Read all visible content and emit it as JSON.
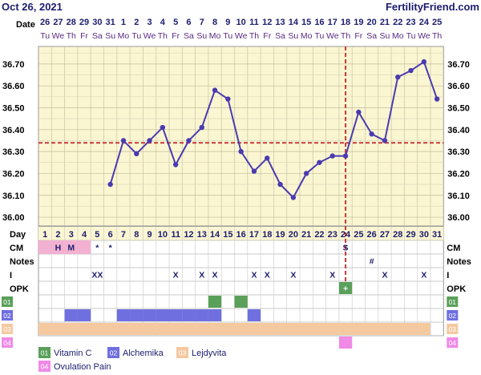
{
  "header": {
    "date": "Oct 26, 2021",
    "site": "FertilityFriend.com"
  },
  "chart_data": {
    "type": "line",
    "row_labels": {
      "date": "Date",
      "day": "Day",
      "cm": "CM",
      "notes": "Notes",
      "intercourse": "I",
      "opk": "OPK"
    },
    "dates": [
      "26",
      "27",
      "28",
      "29",
      "30",
      "31",
      "1",
      "2",
      "3",
      "4",
      "5",
      "6",
      "7",
      "8",
      "9",
      "10",
      "11",
      "12",
      "13",
      "14",
      "15",
      "16",
      "17",
      "18",
      "19",
      "20",
      "21",
      "22",
      "23",
      "24",
      "25"
    ],
    "weekdays": [
      "Tu",
      "We",
      "Th",
      "Fr",
      "Sa",
      "Su",
      "Mo",
      "Tu",
      "We",
      "Th",
      "Fr",
      "Sa",
      "Su",
      "Mo",
      "Tu",
      "We",
      "Th",
      "Fr",
      "Sa",
      "Su",
      "Mo",
      "Tu",
      "We",
      "Th",
      "Fr",
      "Sa",
      "Su",
      "Mo",
      "Tu",
      "We",
      "Th"
    ],
    "days": [
      1,
      2,
      3,
      4,
      5,
      6,
      7,
      8,
      9,
      10,
      11,
      12,
      13,
      14,
      15,
      16,
      17,
      18,
      19,
      20,
      21,
      22,
      23,
      24,
      25,
      26,
      27,
      28,
      29,
      30,
      31
    ],
    "y_ticks": [
      "36.00",
      "36.10",
      "36.20",
      "36.30",
      "36.40",
      "36.50",
      "36.60",
      "36.70"
    ],
    "ylim": [
      35.96,
      36.78
    ],
    "temperatures": [
      null,
      null,
      null,
      null,
      null,
      36.15,
      36.35,
      36.29,
      36.35,
      36.41,
      36.24,
      36.35,
      36.41,
      36.58,
      36.54,
      36.3,
      36.21,
      36.27,
      36.15,
      36.09,
      36.2,
      36.25,
      36.28,
      36.28,
      36.48,
      36.38,
      36.35,
      36.64,
      36.67,
      36.71,
      36.54
    ],
    "coverline": 36.34,
    "ovulation_day": 24,
    "cm": [
      "",
      "H",
      "M",
      "",
      "*",
      "*",
      "",
      "",
      "",
      "",
      "",
      "",
      "",
      "",
      "",
      "",
      "",
      "",
      "",
      "",
      "",
      "",
      "",
      "S",
      "",
      "",
      "",
      "",
      "",
      "",
      ""
    ],
    "cm_colors": {
      "H": "#f2b1d1",
      "M": "#f2b1d1"
    },
    "cm_highlight_days": [
      1,
      2,
      3,
      4
    ],
    "notes": [
      "",
      "",
      "",
      "",
      "",
      "",
      "",
      "",
      "",
      "",
      "",
      "",
      "",
      "",
      "",
      "",
      "",
      "",
      "",
      "",
      "",
      "",
      "",
      "",
      "",
      "#",
      "",
      "",
      "",
      "",
      ""
    ],
    "intercourse": [
      "",
      "",
      "",
      "",
      "XX",
      "",
      "",
      "",
      "",
      "",
      "X",
      "",
      "X",
      "X",
      "",
      "",
      "X",
      "X",
      "",
      "X",
      "",
      "",
      "X",
      "",
      "",
      "",
      "X",
      "",
      "",
      "X",
      ""
    ],
    "opk": [
      "",
      "",
      "",
      "",
      "",
      "",
      "",
      "",
      "",
      "",
      "",
      "",
      "",
      "",
      "",
      "",
      "",
      "",
      "",
      "",
      "",
      "",
      "",
      "+",
      "",
      "",
      "",
      "",
      "",
      "",
      ""
    ],
    "meds": [
      {
        "code": "01",
        "name": "Vitamin C",
        "color": "#5aa05a",
        "days": [
          14,
          16
        ]
      },
      {
        "code": "02",
        "name": "Alchemika",
        "color": "#6f6fe0",
        "days": [
          3,
          4,
          7,
          8,
          9,
          10,
          11,
          12,
          13,
          14,
          17
        ]
      },
      {
        "code": "03",
        "name": "Lejdyvita",
        "color": "#f5c9a0",
        "days": [
          1,
          2,
          3,
          4,
          5,
          6,
          7,
          8,
          9,
          10,
          11,
          12,
          13,
          14,
          15,
          16,
          17,
          18,
          19,
          20,
          21,
          22,
          23,
          24,
          25,
          26,
          27,
          28,
          29,
          30
        ]
      },
      {
        "code": "04",
        "name": "Ovulation Pain",
        "color": "#f08ae6",
        "days": [
          24
        ]
      }
    ]
  }
}
